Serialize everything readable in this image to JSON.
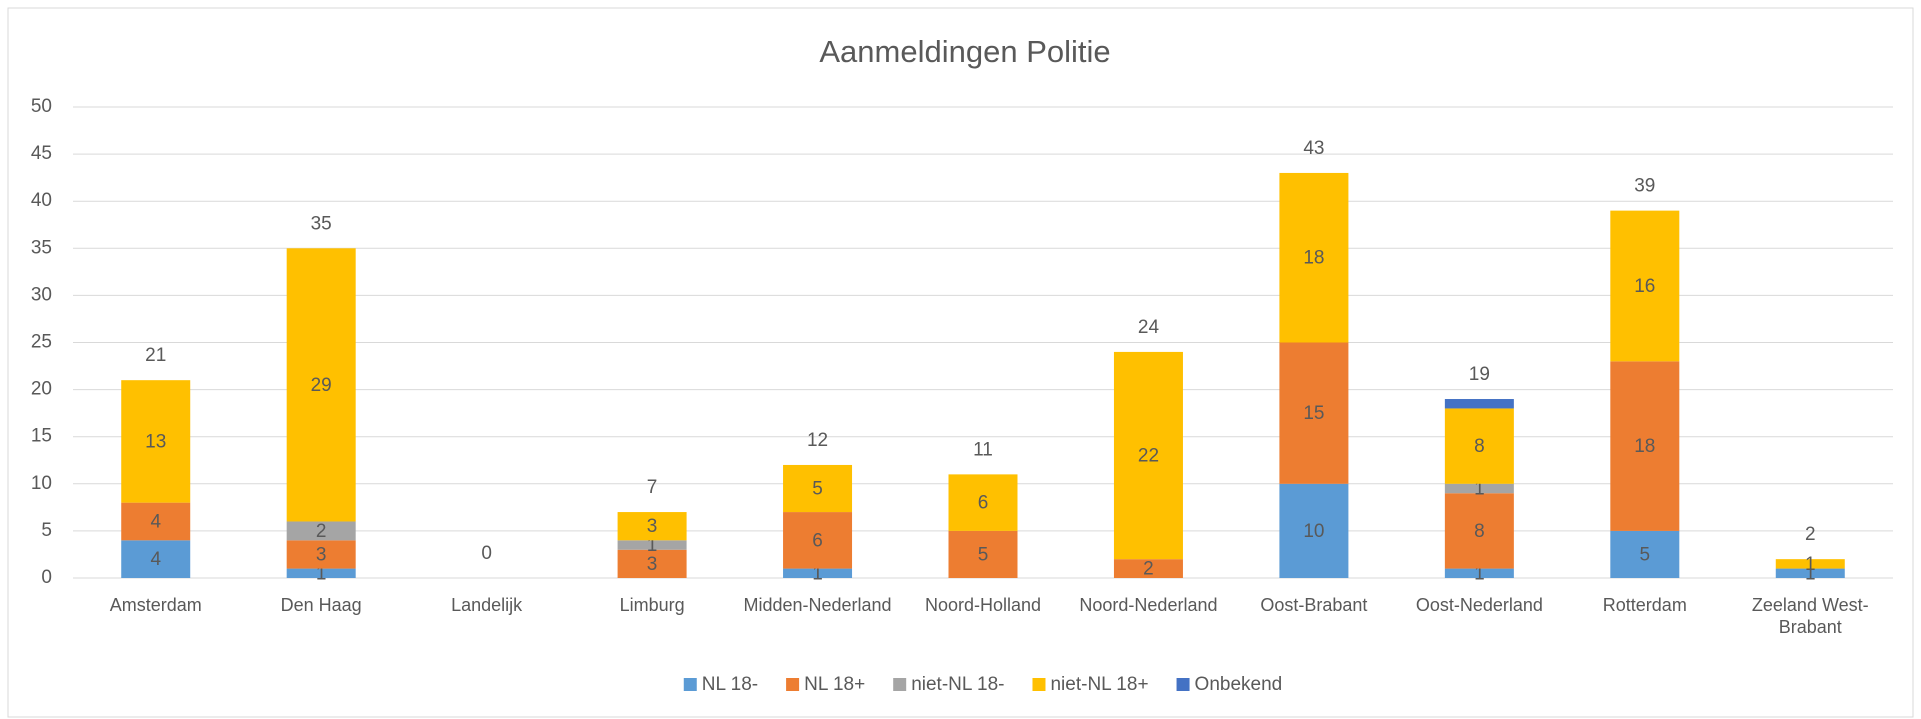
{
  "chart_data": {
    "type": "stacked_bar",
    "title": "Aanmeldingen Politie",
    "categories": [
      "Amsterdam",
      "Den Haag",
      "Landelijk",
      "Limburg",
      "Midden-Nederland",
      "Noord-Holland",
      "Noord-Nederland",
      "Oost-Brabant",
      "Oost-Nederland",
      "Rotterdam",
      "Zeeland West-Brabant"
    ],
    "series": [
      {
        "name": "NL 18-",
        "color": "#5b9bd5",
        "values": [
          4,
          1,
          null,
          null,
          1,
          null,
          null,
          10,
          1,
          5,
          1
        ]
      },
      {
        "name": "NL 18+",
        "color": "#ed7d31",
        "values": [
          4,
          3,
          null,
          3,
          6,
          5,
          2,
          15,
          8,
          18,
          null
        ]
      },
      {
        "name": "niet-NL 18-",
        "color": "#a5a5a5",
        "values": [
          null,
          2,
          null,
          1,
          null,
          null,
          null,
          null,
          1,
          null,
          null
        ]
      },
      {
        "name": "niet-NL 18+",
        "color": "#ffc000",
        "values": [
          13,
          29,
          null,
          3,
          5,
          6,
          22,
          18,
          8,
          16,
          1
        ]
      },
      {
        "name": "Onbekend",
        "color": "#4472c4",
        "values": [
          null,
          null,
          null,
          null,
          null,
          null,
          null,
          null,
          1,
          null,
          null
        ],
        "value_labels": [
          null,
          null,
          null,
          null,
          null,
          null,
          null,
          null,
          null,
          null,
          null
        ]
      }
    ],
    "totals": [
      21,
      35,
      0,
      7,
      12,
      11,
      24,
      43,
      19,
      39,
      2
    ],
    "ylim": [
      0,
      50
    ],
    "yticks": [
      0,
      5,
      10,
      15,
      20,
      25,
      30,
      35,
      40,
      45,
      50
    ],
    "grid": true,
    "legend": "bottom"
  }
}
